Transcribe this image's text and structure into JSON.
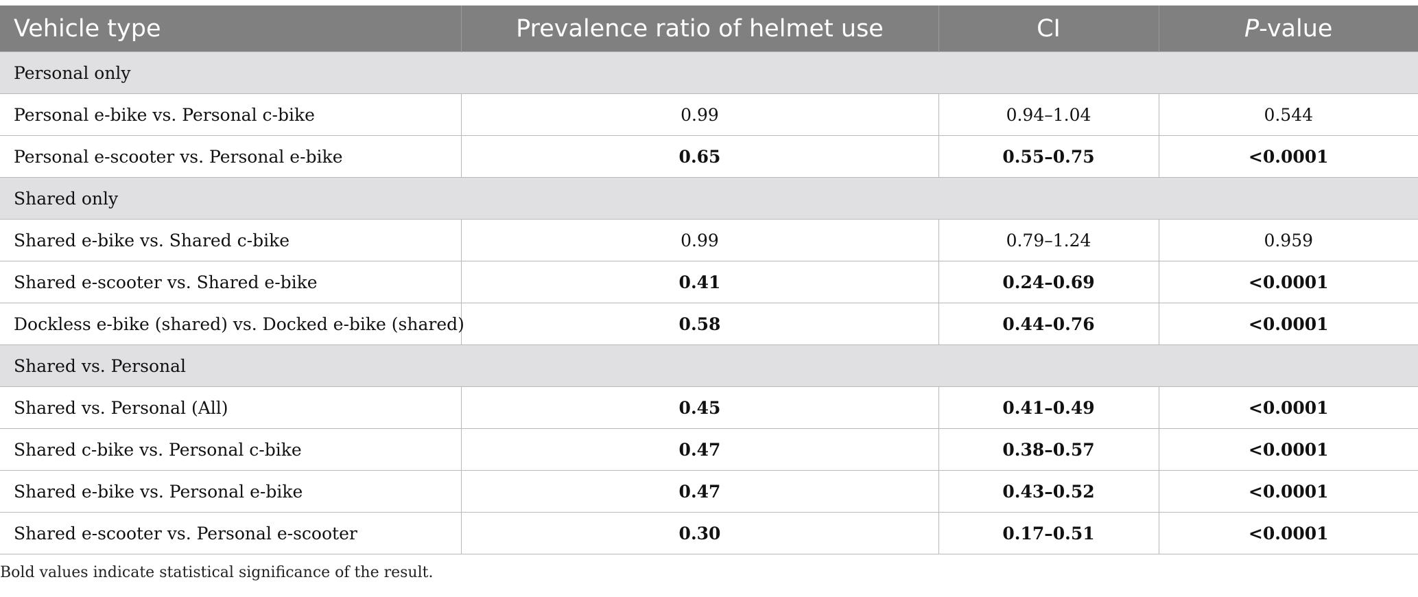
{
  "table": {
    "headers": {
      "vehicle_type": "Vehicle type",
      "prevalence_ratio": "Prevalence ratio of helmet use",
      "ci": "CI",
      "p_italic": "P",
      "p_suffix": "-value"
    },
    "groups": [
      {
        "label": "Personal only",
        "rows": [
          {
            "vehicle": "Personal e-bike vs. Personal c-bike",
            "ratio": "0.99",
            "ci": "0.94–1.04",
            "p": "0.544",
            "significant": false
          },
          {
            "vehicle": "Personal e-scooter vs. Personal e-bike",
            "ratio": "0.65",
            "ci": "0.55–0.75",
            "p": "<0.0001",
            "significant": true
          }
        ]
      },
      {
        "label": "Shared only",
        "rows": [
          {
            "vehicle": "Shared e-bike vs. Shared c-bike",
            "ratio": "0.99",
            "ci": "0.79–1.24",
            "p": "0.959",
            "significant": false
          },
          {
            "vehicle": "Shared e-scooter vs. Shared e-bike",
            "ratio": "0.41",
            "ci": "0.24–0.69",
            "p": "<0.0001",
            "significant": true
          },
          {
            "vehicle": "Dockless e-bike (shared) vs. Docked e-bike (shared)",
            "ratio": "0.58",
            "ci": "0.44–0.76",
            "p": "<0.0001",
            "significant": true
          }
        ]
      },
      {
        "label": "Shared vs. Personal",
        "rows": [
          {
            "vehicle": "Shared vs. Personal (All)",
            "ratio": "0.45",
            "ci": "0.41–0.49",
            "p": "<0.0001",
            "significant": true
          },
          {
            "vehicle": "Shared c-bike vs. Personal c-bike",
            "ratio": "0.47",
            "ci": "0.38–0.57",
            "p": "<0.0001",
            "significant": true
          },
          {
            "vehicle": "Shared e-bike vs. Personal e-bike",
            "ratio": "0.47",
            "ci": "0.43–0.52",
            "p": "<0.0001",
            "significant": true
          },
          {
            "vehicle": "Shared e-scooter vs. Personal e-scooter",
            "ratio": "0.30",
            "ci": "0.17–0.51",
            "p": "<0.0001",
            "significant": true
          }
        ]
      }
    ]
  },
  "footnote": "Bold values indicate statistical significance of the result.",
  "colors": {
    "header_bg": "#808080",
    "group_bg": "#e0dfe1"
  }
}
